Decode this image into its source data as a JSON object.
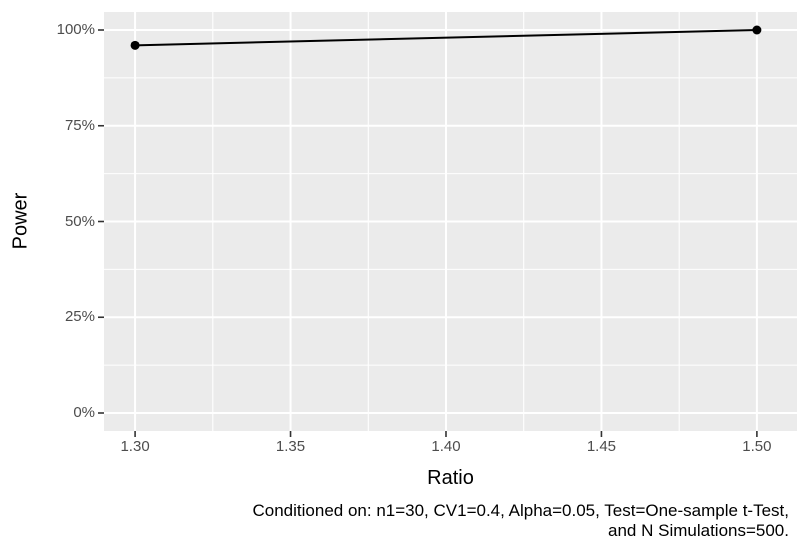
{
  "chart_data": {
    "type": "line",
    "title": "",
    "xlabel": "Ratio",
    "ylabel": "Power",
    "series": [
      {
        "name": "Power",
        "x": [
          1.3,
          1.5
        ],
        "y": [
          0.96,
          1.0
        ]
      }
    ],
    "xticks": {
      "values": [
        1.3,
        1.35,
        1.4,
        1.45,
        1.5
      ],
      "labels": [
        "1.30",
        "1.35",
        "1.40",
        "1.45",
        "1.50"
      ]
    },
    "yticks": {
      "values": [
        0,
        0.25,
        0.5,
        0.75,
        1.0
      ],
      "labels": [
        "0%",
        "25%",
        "50%",
        "75%",
        "100%"
      ]
    },
    "xlim": [
      1.29,
      1.5129
    ],
    "ylim": [
      -0.047,
      1.047
    ],
    "grid": "major+minor",
    "legend": "none",
    "point_shape": "filled-circle",
    "caption": "Conditioned on: n1=30, CV1=0.4, Alpha=0.05, Test=One-sample t-Test,\nand N Simulations=500.",
    "colors": {
      "background": "#FFFFFF",
      "panel_bg": "#EBEBEB",
      "grid": "#FFFFFF",
      "series": "#000000",
      "tick_label": "#4D4D4D",
      "tick_mark": "#333333",
      "axis_title": "#000000",
      "caption": "#000000"
    }
  }
}
